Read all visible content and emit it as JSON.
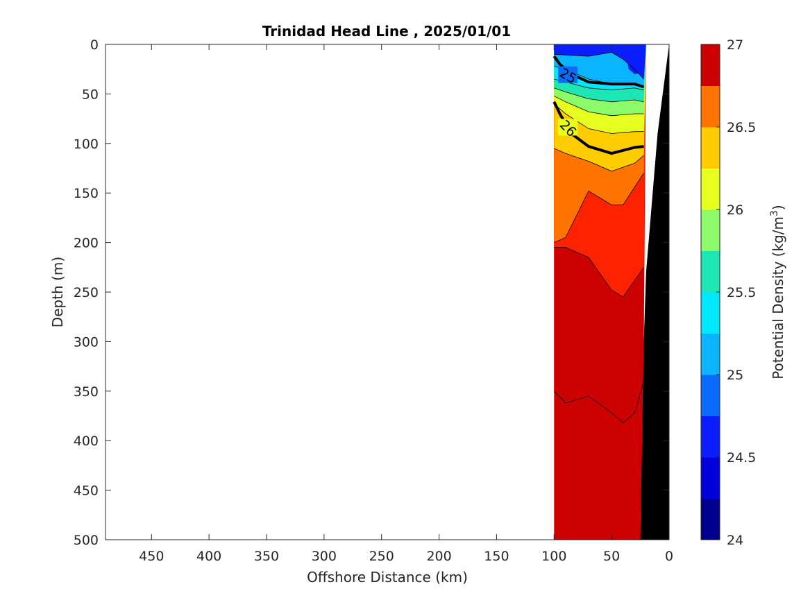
{
  "chart_data": {
    "type": "contour",
    "title": "Trinidad Head Line , 2025/01/01",
    "xlabel": "Offshore Distance (km)",
    "ylabel": "Depth (m)",
    "colorbar_label": "Potential Density (kg/m",
    "colorbar_label_sup": "3",
    "colorbar_label_end": ")",
    "xlim": [
      490,
      0
    ],
    "ylim": [
      0,
      500
    ],
    "x_reversed": true,
    "y_reversed": true,
    "xticks": [
      450,
      400,
      350,
      300,
      250,
      200,
      150,
      100,
      50,
      0
    ],
    "yticks": [
      0,
      50,
      100,
      150,
      200,
      250,
      300,
      350,
      400,
      450,
      500
    ],
    "colorbar_ticks": [
      24,
      24.5,
      25,
      25.5,
      26,
      26.5,
      27
    ],
    "colorbar_tick_labels": [
      "24",
      "24.5",
      "25",
      "25.5",
      "26",
      "26.5",
      "27"
    ],
    "clim": [
      24,
      27
    ],
    "levels": [
      24,
      24.25,
      24.5,
      24.75,
      25,
      25.25,
      25.5,
      25.75,
      26,
      26.25,
      26.5,
      26.75,
      27
    ],
    "colormap": [
      "#00008f",
      "#0000da",
      "#0a1eff",
      "#0a6cff",
      "#0ab4ff",
      "#00e8ff",
      "#1de6b5",
      "#8bfb6a",
      "#e6ff1e",
      "#ffcc00",
      "#ff7300",
      "#ff2200",
      "#cc0000"
    ],
    "data_extent_km": [
      100,
      20
    ],
    "contour_intervals": [
      {
        "level": 24.5,
        "color_index": 2,
        "x": [
          100,
          70,
          50,
          40,
          30,
          22
        ],
        "y": [
          10,
          12,
          8,
          15,
          25,
          35
        ]
      },
      {
        "level": 24.75,
        "color_index": 3,
        "x": [
          100,
          90,
          70,
          50,
          30,
          22
        ],
        "y": [
          22,
          25,
          35,
          40,
          40,
          42
        ]
      },
      {
        "level": 25,
        "color_index": 4,
        "x": [
          100,
          90,
          70,
          50,
          30,
          22
        ],
        "y": [
          35,
          38,
          44,
          46,
          44,
          46
        ]
      },
      {
        "level": 25.25,
        "color_index": 5,
        "x": [
          100,
          90,
          70,
          50,
          30,
          22
        ],
        "y": [
          44,
          48,
          55,
          58,
          56,
          58
        ]
      },
      {
        "level": 25.5,
        "color_index": 6,
        "x": [
          100,
          90,
          70,
          50,
          30,
          22
        ],
        "y": [
          52,
          58,
          68,
          72,
          70,
          70
        ]
      },
      {
        "level": 25.75,
        "color_index": 7,
        "x": [
          100,
          90,
          70,
          50,
          30,
          22
        ],
        "y": [
          60,
          70,
          85,
          90,
          88,
          88
        ]
      },
      {
        "level": 26,
        "color_index": 8,
        "x": [
          100,
          90,
          70,
          50,
          30,
          22
        ],
        "y": [
          105,
          110,
          118,
          128,
          120,
          112
        ]
      },
      {
        "level": 26.25,
        "color_index": 9,
        "x": [
          100,
          90,
          70,
          50,
          40,
          22
        ],
        "y": [
          200,
          195,
          148,
          162,
          162,
          130
        ]
      },
      {
        "level": 26.5,
        "color_index": 10,
        "x": [
          100,
          90,
          70,
          50,
          40,
          22
        ],
        "y": [
          205,
          205,
          215,
          248,
          255,
          225
        ]
      },
      {
        "level": 26.75,
        "color_index": 11,
        "x": [
          100,
          90,
          70,
          50,
          40,
          30,
          22
        ],
        "y": [
          350,
          362,
          355,
          372,
          382,
          372,
          340
        ]
      }
    ],
    "bold_contours": [
      {
        "label": "25",
        "x": [
          100,
          95,
          85,
          70,
          50,
          30,
          22
        ],
        "y": [
          12,
          20,
          30,
          38,
          40,
          40,
          43
        ]
      },
      {
        "label": "26",
        "x": [
          100,
          95,
          85,
          70,
          50,
          30,
          22
        ],
        "y": [
          58,
          70,
          90,
          103,
          110,
          104,
          103
        ]
      }
    ],
    "bottom_topography": {
      "x": [
        23,
        30,
        40,
        50,
        25,
        20,
        15,
        10,
        5,
        0,
        0
      ],
      "y": [
        500,
        500,
        500,
        500,
        500,
        300,
        200,
        100,
        50,
        0,
        500
      ]
    },
    "gap_wedge": {
      "x": [
        20,
        0,
        10,
        20
      ],
      "y": [
        0,
        0,
        90,
        300
      ]
    }
  }
}
